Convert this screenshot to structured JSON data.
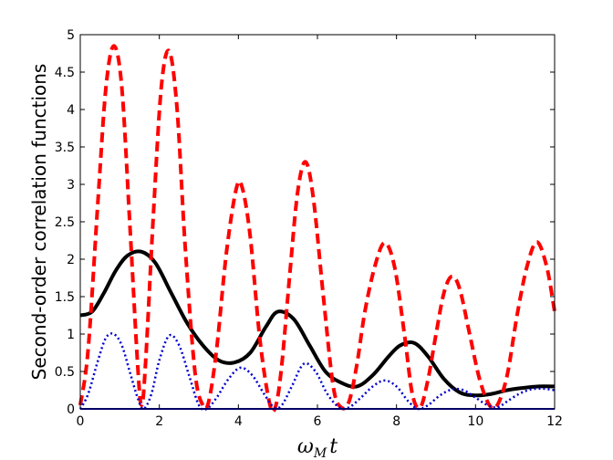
{
  "chart_data": {
    "type": "line",
    "title": "",
    "xlabel_main": "ω",
    "xlabel_sub": "M",
    "xlabel_var": "t",
    "ylabel": "Second-order correlation functions",
    "xlim": [
      0,
      12
    ],
    "ylim": [
      0,
      5
    ],
    "xticks": [
      "0",
      "2",
      "4",
      "6",
      "8",
      "10",
      "12"
    ],
    "yticks": [
      "0",
      "0.5",
      "1",
      "1.5",
      "2",
      "2.5",
      "3",
      "3.5",
      "4",
      "4.5",
      "5"
    ],
    "grid": false,
    "legend": "none",
    "series": [
      {
        "style": "solid",
        "color": "#000000",
        "x": [
          0,
          0.3,
          0.6,
          0.9,
          1.2,
          1.55,
          1.9,
          2.3,
          2.7,
          3.1,
          3.5,
          3.9,
          4.3,
          4.7,
          5.0,
          5.4,
          5.8,
          6.2,
          6.6,
          7.0,
          7.4,
          7.8,
          8.1,
          8.45,
          8.8,
          9.2,
          9.6,
          10.0,
          10.4,
          10.8,
          11.2,
          11.6,
          12.0
        ],
        "y": [
          1.25,
          1.3,
          1.55,
          1.85,
          2.05,
          2.1,
          1.95,
          1.55,
          1.15,
          0.85,
          0.65,
          0.62,
          0.75,
          1.1,
          1.3,
          1.2,
          0.85,
          0.5,
          0.35,
          0.3,
          0.45,
          0.7,
          0.85,
          0.88,
          0.7,
          0.4,
          0.22,
          0.18,
          0.2,
          0.25,
          0.28,
          0.3,
          0.3
        ]
      },
      {
        "style": "dashed",
        "color": "#ff0000",
        "x": [
          0,
          0.2,
          0.45,
          0.65,
          0.85,
          1.05,
          1.25,
          1.45,
          1.55,
          1.65,
          1.85,
          2.05,
          2.25,
          2.45,
          2.65,
          2.9,
          3.1,
          3.25,
          3.45,
          3.7,
          3.95,
          4.1,
          4.3,
          4.55,
          4.8,
          4.95,
          5.1,
          5.3,
          5.5,
          5.7,
          5.9,
          6.15,
          6.4,
          6.6,
          6.8,
          7.0,
          7.2,
          7.45,
          7.7,
          7.95,
          8.2,
          8.4,
          8.6,
          8.8,
          9.0,
          9.2,
          9.4,
          9.6,
          9.85,
          10.1,
          10.35,
          10.55,
          10.8,
          11.05,
          11.3,
          11.55,
          11.8,
          12.0
        ],
        "y": [
          0.05,
          0.8,
          2.8,
          4.3,
          4.85,
          4.3,
          2.5,
          0.6,
          0.05,
          0.6,
          2.6,
          4.3,
          4.78,
          4.0,
          2.2,
          0.5,
          0.05,
          0.1,
          0.8,
          2.1,
          2.95,
          2.95,
          2.3,
          0.9,
          0.05,
          0.05,
          0.6,
          1.8,
          2.9,
          3.3,
          2.8,
          1.5,
          0.3,
          0.02,
          0.1,
          0.6,
          1.3,
          1.9,
          2.22,
          1.9,
          1.0,
          0.2,
          0.02,
          0.4,
          1.0,
          1.55,
          1.77,
          1.6,
          1.0,
          0.4,
          0.05,
          0.05,
          0.45,
          1.25,
          1.9,
          2.23,
          1.9,
          1.3
        ]
      },
      {
        "style": "dotted",
        "color": "#0000cc",
        "x": [
          0,
          0.2,
          0.45,
          0.65,
          0.85,
          1.05,
          1.25,
          1.45,
          1.6,
          1.8,
          2.0,
          2.25,
          2.5,
          2.75,
          3.0,
          3.2,
          3.45,
          3.75,
          4.05,
          4.35,
          4.65,
          4.9,
          5.1,
          5.35,
          5.65,
          5.95,
          6.25,
          6.55,
          6.8,
          7.1,
          7.4,
          7.7,
          8.0,
          8.3,
          8.55,
          8.8,
          9.1,
          9.4,
          9.7,
          10.0,
          10.3,
          10.55,
          10.8,
          11.1,
          11.4,
          11.7,
          12.0
        ],
        "y": [
          0.0,
          0.2,
          0.65,
          0.95,
          1.0,
          0.85,
          0.5,
          0.15,
          0.0,
          0.2,
          0.65,
          0.98,
          0.85,
          0.45,
          0.05,
          0.0,
          0.15,
          0.4,
          0.55,
          0.45,
          0.2,
          0.02,
          0.05,
          0.3,
          0.6,
          0.5,
          0.2,
          0.02,
          0.02,
          0.15,
          0.3,
          0.38,
          0.3,
          0.1,
          0.0,
          0.05,
          0.18,
          0.26,
          0.25,
          0.15,
          0.05,
          0.02,
          0.1,
          0.2,
          0.26,
          0.27,
          0.25
        ]
      },
      {
        "style": "solid-thin",
        "color": "#0000cc",
        "x": [
          0,
          12
        ],
        "y": [
          0.0,
          0.0
        ]
      }
    ]
  }
}
